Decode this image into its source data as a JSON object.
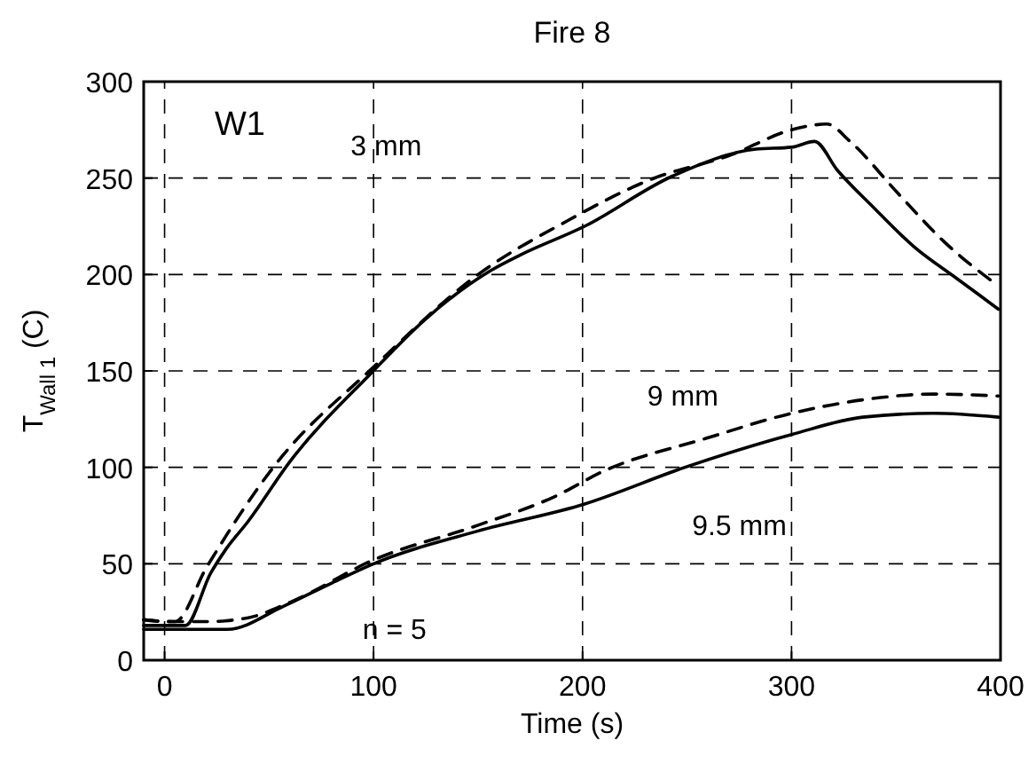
{
  "chart_data": {
    "type": "line",
    "title": "Fire 8",
    "xlabel": "Time (s)",
    "ylabel": "T$_{Wall 1}$ (C)",
    "xlim": [
      -10,
      400
    ],
    "xticks": [
      0,
      100,
      200,
      300,
      400
    ],
    "ylim": [
      0,
      300
    ],
    "yticks": [
      0,
      50,
      100,
      150,
      200,
      250,
      300
    ],
    "grid": true,
    "marker": "none",
    "annotations": [
      "W1",
      "n = 5",
      "3 mm",
      "9 mm",
      "9.5 mm"
    ],
    "series": [
      {
        "color": "#000000",
        "line_style": "solid",
        "x": [
          -10,
          10,
          22,
          29,
          40,
          60,
          99,
          125,
          156,
          170,
          201,
          243,
          283,
          300,
          311,
          322,
          339,
          359,
          379,
          399
        ],
        "values": [
          18,
          18,
          45,
          57,
          72,
          103,
          149,
          177,
          202,
          210,
          225,
          251,
          265,
          266,
          269,
          254,
          235,
          214,
          198,
          182
        ]
      },
      {
        "color": "#000000",
        "line_style": "dashed",
        "x": [
          -10,
          5,
          20,
          52,
          100,
          150,
          193,
          232,
          271,
          300,
          317,
          328,
          351,
          373,
          399
        ],
        "values": [
          21,
          20,
          48,
          100,
          152,
          200,
          228,
          249,
          262,
          275,
          278,
          269,
          242,
          217,
          194
        ]
      },
      {
        "color": "#000000",
        "line_style": "solid",
        "x": [
          -10,
          0,
          30,
          57,
          80,
          100,
          150,
          201,
          249,
          300,
          334,
          368,
          399
        ],
        "values": [
          16,
          16,
          16,
          28,
          40,
          50,
          67,
          81,
          100,
          117,
          126,
          128,
          126
        ]
      },
      {
        "color": "#000000",
        "line_style": "dashed",
        "x": [
          -10,
          0,
          20,
          40,
          60,
          100,
          150,
          187,
          210,
          259,
          300,
          334,
          368,
          399
        ],
        "values": [
          21,
          20,
          20,
          22,
          30,
          52,
          70,
          85,
          98,
          115,
          128,
          135,
          138,
          137
        ]
      }
    ]
  }
}
